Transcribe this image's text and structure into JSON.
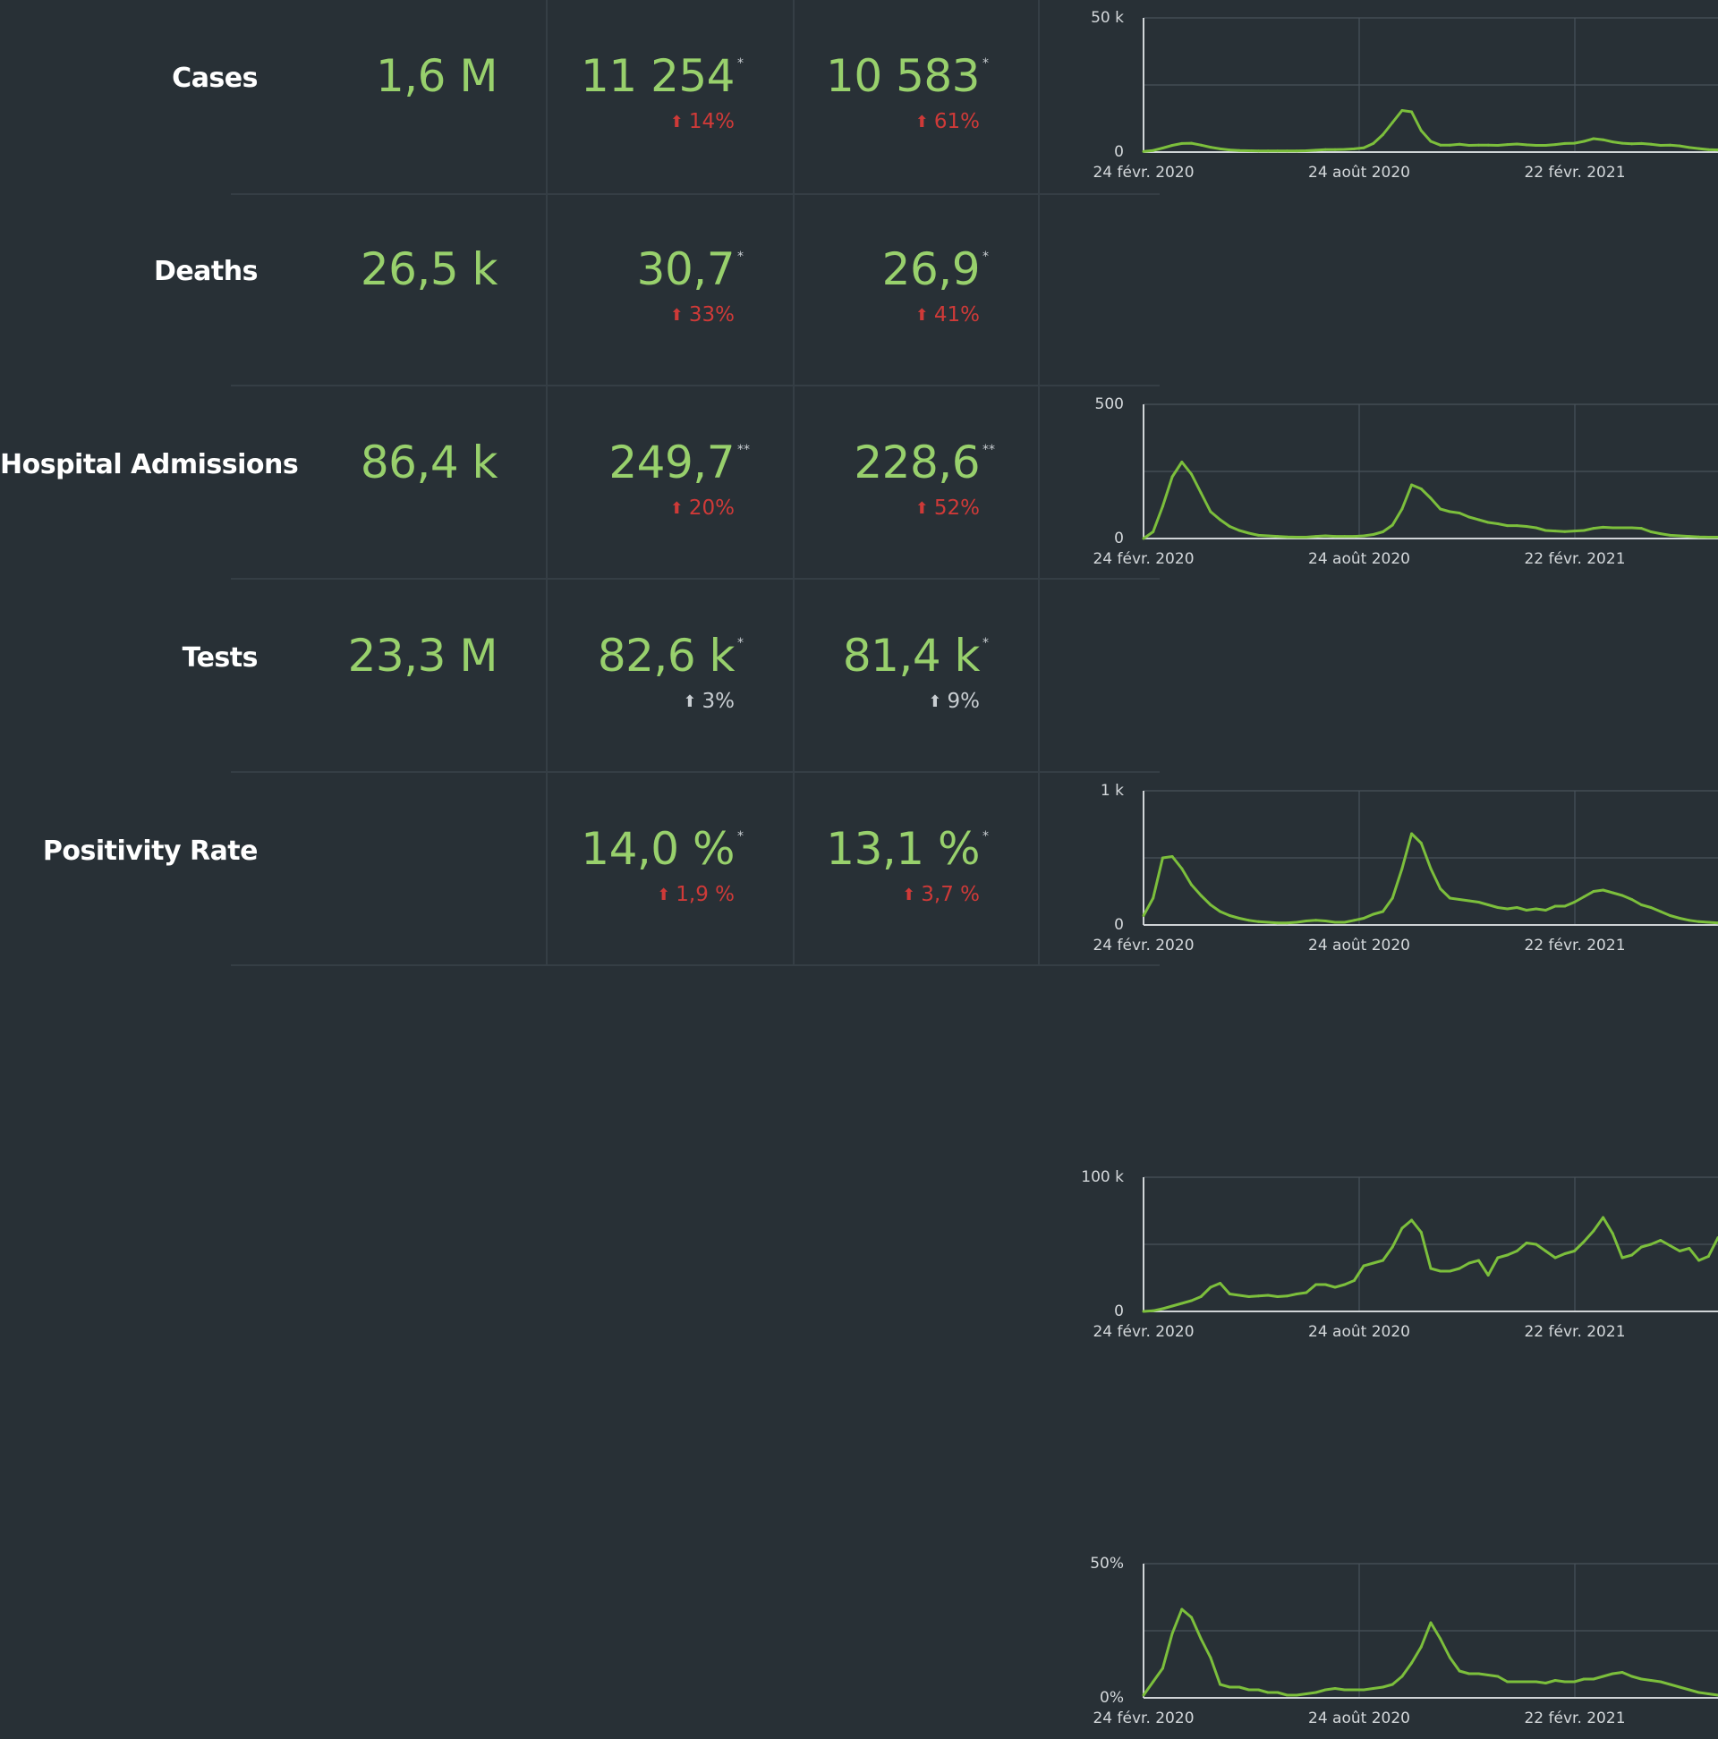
{
  "colors": {
    "background": "#283036",
    "value": "#98d06c",
    "increase": "#cf3a38",
    "neutral": "#c9ced2",
    "line": "#7cbf3c",
    "grid": "#4a545b"
  },
  "icons": {
    "up": "up-arrow-icon"
  },
  "rows": [
    {
      "label": "Cases",
      "total": "1,6 M",
      "a": {
        "value": "11 254",
        "mark": "*",
        "delta": "14%",
        "trend": "increase"
      },
      "b": {
        "value": "10 583",
        "mark": "*",
        "delta": "61%",
        "trend": "increase"
      }
    },
    {
      "label": "Deaths",
      "total": "26,5 k",
      "a": {
        "value": "30,7",
        "mark": "*",
        "delta": "33%",
        "trend": "increase"
      },
      "b": {
        "value": "26,9",
        "mark": "*",
        "delta": "41%",
        "trend": "increase"
      }
    },
    {
      "label": "Hospital Admissions",
      "total": "86,4 k",
      "a": {
        "value": "249,7",
        "mark": "**",
        "delta": "20%",
        "trend": "increase"
      },
      "b": {
        "value": "228,6",
        "mark": "**",
        "delta": "52%",
        "trend": "increase"
      }
    },
    {
      "label": "Tests",
      "total": "23,3 M",
      "a": {
        "value": "82,6 k",
        "mark": "*",
        "delta": "3%",
        "trend": "neutral"
      },
      "b": {
        "value": "81,4 k",
        "mark": "*",
        "delta": "9%",
        "trend": "neutral"
      }
    },
    {
      "label": "Positivity Rate",
      "total": "",
      "a": {
        "value": "14,0 %",
        "mark": "*",
        "delta": "1,9 %",
        "trend": "increase"
      },
      "b": {
        "value": "13,1 %",
        "mark": "*",
        "delta": "3,7 %",
        "trend": "increase"
      }
    }
  ],
  "chart_data": [
    {
      "type": "line",
      "ylim": [
        0,
        50000
      ],
      "y_ticks": [
        "50 k",
        "0"
      ],
      "x_ticks": [
        "24 févr. 2020",
        "24 août 2020",
        "22 févr. 2021"
      ],
      "grid": true,
      "legend": "none",
      "series": [
        {
          "values": [
            200,
            600,
            1500,
            2500,
            3200,
            3300,
            2600,
            1800,
            1200,
            800,
            600,
            500,
            400,
            400,
            400,
            400,
            400,
            500,
            700,
            900,
            900,
            1000,
            1200,
            1600,
            3200,
            6500,
            11000,
            15500,
            15000,
            8000,
            4000,
            2600,
            2600,
            2900,
            2500,
            2600,
            2600,
            2500,
            2800,
            3000,
            2700,
            2500,
            2500,
            2800,
            3200,
            3300,
            4000,
            5000,
            4600,
            3800,
            3300,
            3100,
            3200,
            2900,
            2500,
            2600,
            2300,
            1700,
            1300,
            900,
            800
          ]
        }
      ]
    },
    {
      "type": "line",
      "ylim": [
        0,
        500
      ],
      "y_ticks": [
        "500",
        "0"
      ],
      "x_ticks": [
        "24 févr. 2020",
        "24 août 2020",
        "22 févr. 2021"
      ],
      "grid": true,
      "legend": "none",
      "series": [
        {
          "values": [
            0,
            25,
            120,
            230,
            285,
            240,
            170,
            100,
            70,
            45,
            30,
            20,
            12,
            10,
            8,
            6,
            5,
            5,
            8,
            10,
            8,
            8,
            8,
            10,
            15,
            25,
            50,
            110,
            200,
            185,
            150,
            110,
            100,
            95,
            80,
            70,
            60,
            55,
            48,
            48,
            45,
            40,
            30,
            28,
            26,
            28,
            30,
            38,
            42,
            40,
            40,
            40,
            38,
            25,
            18,
            12,
            10,
            8,
            6,
            5,
            5
          ]
        }
      ]
    },
    {
      "type": "line",
      "ylim": [
        0,
        1000
      ],
      "y_ticks": [
        "1 k",
        "0"
      ],
      "x_ticks": [
        "24 févr. 2020",
        "24 août 2020",
        "22 févr. 2021"
      ],
      "grid": true,
      "legend": "none",
      "series": [
        {
          "values": [
            70,
            200,
            500,
            510,
            420,
            300,
            220,
            150,
            100,
            70,
            50,
            35,
            25,
            20,
            15,
            15,
            20,
            30,
            35,
            30,
            20,
            20,
            35,
            50,
            80,
            100,
            200,
            420,
            680,
            610,
            420,
            270,
            200,
            190,
            180,
            170,
            150,
            130,
            120,
            130,
            110,
            120,
            110,
            140,
            140,
            170,
            210,
            250,
            260,
            240,
            220,
            190,
            150,
            130,
            100,
            70,
            50,
            35,
            25,
            20,
            15
          ]
        }
      ]
    },
    {
      "type": "line",
      "ylim": [
        0,
        100000
      ],
      "y_ticks": [
        "100 k",
        "0"
      ],
      "x_ticks": [
        "24 févr. 2020",
        "24 août 2020",
        "22 févr. 2021"
      ],
      "grid": true,
      "legend": "none",
      "series": [
        {
          "values": [
            0,
            500,
            2000,
            4000,
            6000,
            8000,
            11000,
            18000,
            21000,
            13000,
            12000,
            11000,
            11500,
            12000,
            11000,
            11500,
            13000,
            14000,
            20000,
            20000,
            18000,
            20000,
            23000,
            34000,
            36000,
            38000,
            48000,
            62000,
            68000,
            59000,
            32000,
            30000,
            30000,
            32000,
            36000,
            38000,
            27000,
            40000,
            42000,
            45000,
            51000,
            50000,
            45000,
            40000,
            43000,
            45000,
            52000,
            60000,
            70000,
            58000,
            40000,
            42000,
            48000,
            50000,
            53000,
            49000,
            45000,
            47000,
            38000,
            41000,
            55000
          ]
        }
      ]
    },
    {
      "type": "line",
      "ylim": [
        0,
        50
      ],
      "y_ticks": [
        "50%",
        "0%"
      ],
      "x_ticks": [
        "24 févr. 2020",
        "24 août 2020",
        "22 févr. 2021"
      ],
      "grid": true,
      "legend": "none",
      "series": [
        {
          "values": [
            1,
            6,
            11,
            24,
            33,
            30,
            22,
            15,
            5,
            4,
            4,
            3,
            3,
            2,
            2,
            1,
            1,
            1.5,
            2,
            3,
            3.5,
            3,
            3,
            3,
            3.5,
            4,
            5,
            8,
            13,
            19,
            28,
            22,
            15,
            10,
            9,
            9,
            8.5,
            8,
            6,
            6,
            6,
            6,
            5.5,
            6.5,
            6,
            6,
            7,
            7,
            8,
            9,
            9.5,
            8,
            7,
            6.5,
            6,
            5,
            4,
            3,
            2,
            1.5,
            1
          ]
        }
      ]
    }
  ]
}
